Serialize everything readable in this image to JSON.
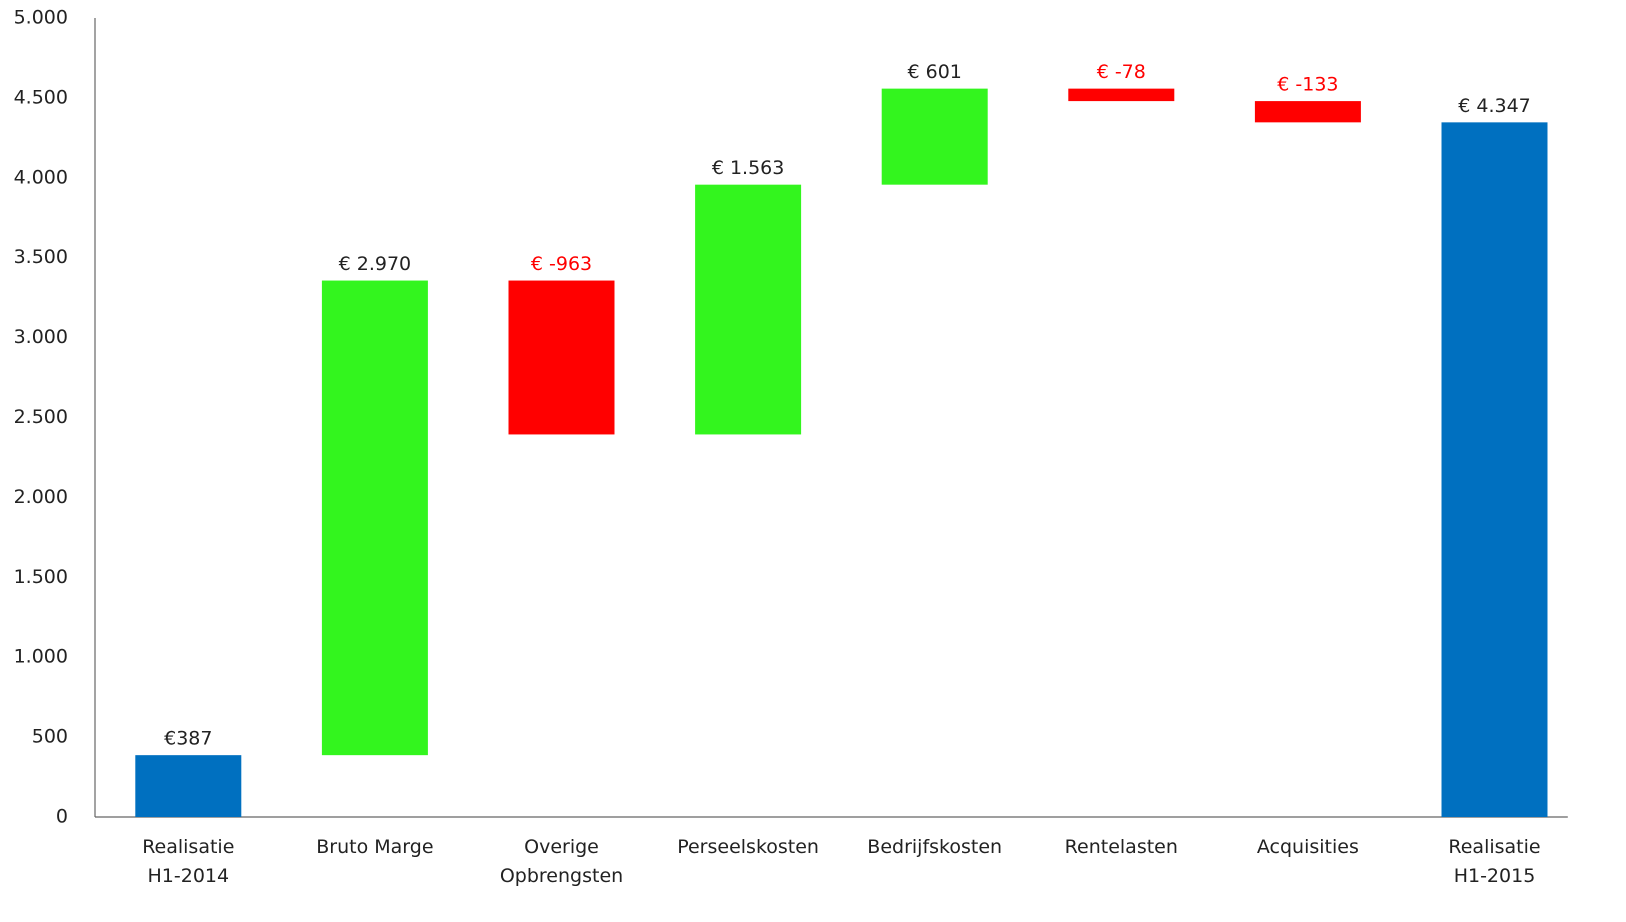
{
  "chart_data": {
    "type": "waterfall",
    "categories": [
      "Realisatie\nH1-2014",
      "Bruto Marge",
      "Overige\nOpbrengsten",
      "Perseelskosten",
      "Bedrijfskosten",
      "Rentelasten",
      "Acquisities",
      "Realisatie\nH1-2015"
    ],
    "values": [
      387,
      2970,
      -963,
      1563,
      601,
      -78,
      -133,
      4347
    ],
    "value_labels": [
      "€387",
      "€ 2.970",
      "€ -963",
      "€ 1.563",
      "€ 601",
      "€ -78",
      "€ -133",
      "€ 4.347"
    ],
    "is_total": [
      true,
      false,
      false,
      false,
      false,
      false,
      false,
      true
    ],
    "colors": {
      "total": "#0070c0",
      "increase": "#33f51e",
      "decrease": "#ff0000"
    },
    "ylim": [
      0,
      5000
    ],
    "yticks": [
      0,
      500,
      {
        "value": 1000,
        "label": "1.000"
      },
      {
        "value": 1500,
        "label": "1.500"
      },
      {
        "value": 2000,
        "label": "2.000"
      },
      {
        "value": 2500,
        "label": "2.500"
      },
      {
        "value": 3000,
        "label": "3.000"
      },
      {
        "value": 3500,
        "label": "3.500"
      },
      {
        "value": 4000,
        "label": "4.000"
      },
      {
        "value": 4500,
        "label": "4.500"
      },
      {
        "value": 5000,
        "label": "5.000"
      }
    ],
    "grid": false
  }
}
